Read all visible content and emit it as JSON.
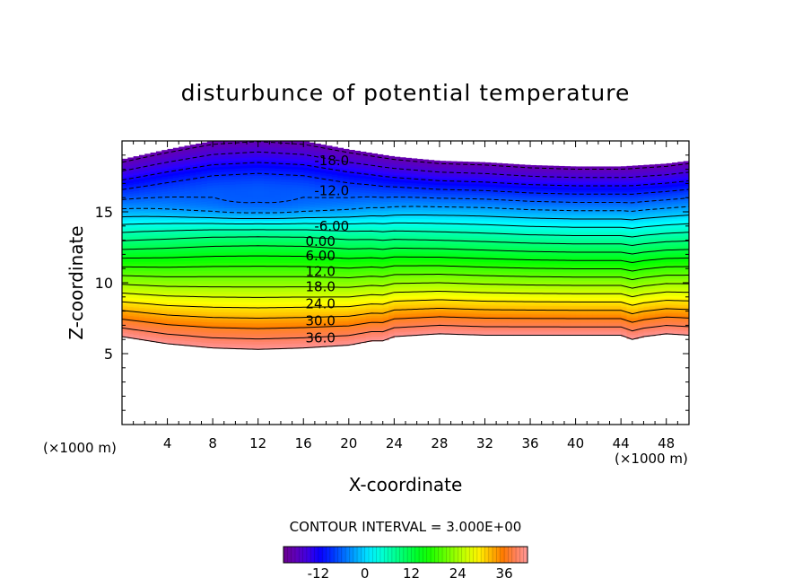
{
  "chart_data": {
    "type": "contour",
    "title": "disturbunce of potential temperature",
    "xlabel": "X-coordinate",
    "ylabel": "Z-coordinate",
    "x_unit_left": "(×1000 m)",
    "x_unit_right": "(×1000 m)",
    "xlim": [
      0,
      50
    ],
    "ylim": [
      0,
      20
    ],
    "x_ticks": [
      4,
      8,
      12,
      16,
      20,
      24,
      28,
      32,
      36,
      40,
      44,
      48
    ],
    "y_ticks": [
      5,
      10,
      15
    ],
    "contour_interval_label": "CONTOUR INTERVAL = 3.000E+00",
    "contour_interval": 3,
    "value_range": [
      -21,
      42
    ],
    "colorbar_ticks": [
      -12,
      0,
      12,
      24,
      36
    ],
    "contour_labels": [
      {
        "text": "-18.0",
        "x": 18.5,
        "y": 18.6
      },
      {
        "text": "-12.0",
        "x": 18.5,
        "y": 16.5
      },
      {
        "text": "-6.00",
        "x": 18.5,
        "y": 14.0
      },
      {
        "text": "0.00",
        "x": 17.5,
        "y": 12.9
      },
      {
        "text": "6.00",
        "x": 17.5,
        "y": 11.9
      },
      {
        "text": "12.0",
        "x": 17.5,
        "y": 10.8
      },
      {
        "text": "18.0",
        "x": 17.5,
        "y": 9.7
      },
      {
        "text": "24.0",
        "x": 17.5,
        "y": 8.5
      },
      {
        "text": "30.0",
        "x": 17.5,
        "y": 7.3
      },
      {
        "text": "36.0",
        "x": 17.5,
        "y": 6.1
      }
    ],
    "bottom_boundary": {
      "x": [
        0,
        4,
        8,
        12,
        16,
        20,
        22,
        23,
        24,
        28,
        32,
        36,
        40,
        44,
        45,
        46,
        48,
        50
      ],
      "z": [
        6.2,
        5.7,
        5.4,
        5.3,
        5.4,
        5.6,
        5.9,
        5.9,
        6.2,
        6.4,
        6.3,
        6.3,
        6.3,
        6.3,
        6.0,
        6.2,
        6.4,
        6.3
      ]
    },
    "top_boundary": {
      "x": [
        0,
        4,
        8,
        12,
        16,
        20,
        24,
        28,
        32,
        36,
        40,
        44,
        48,
        50
      ],
      "z": [
        18.7,
        19.4,
        20.0,
        20.2,
        20.0,
        19.4,
        18.9,
        18.6,
        18.5,
        18.3,
        18.2,
        18.2,
        18.4,
        18.6
      ]
    },
    "cold_core": {
      "x": 12,
      "z": 15.3,
      "value": -21
    }
  }
}
